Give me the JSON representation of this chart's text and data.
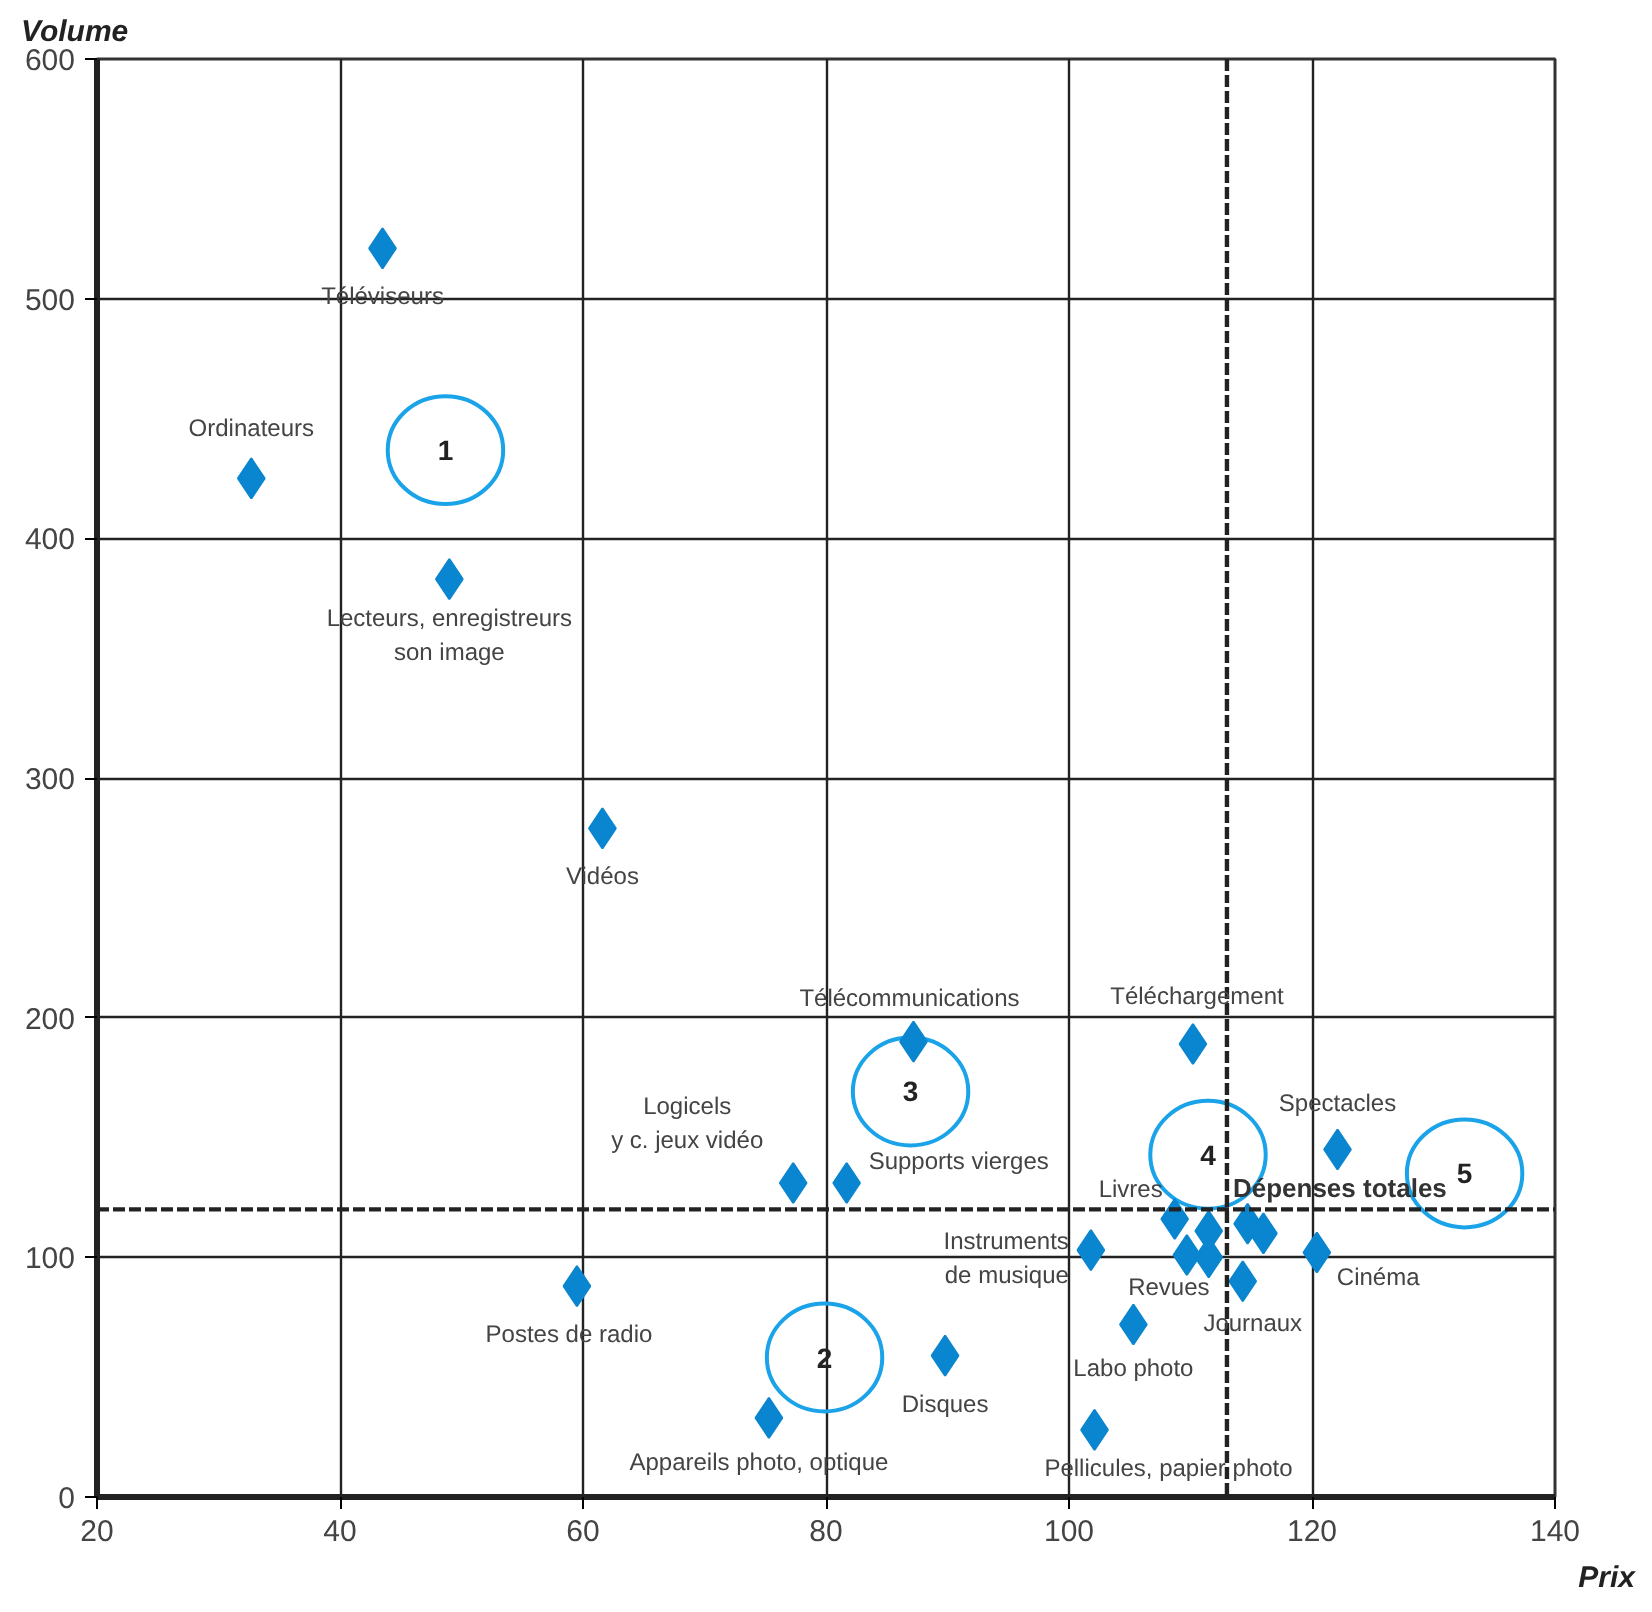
{
  "chart_data": {
    "type": "scatter",
    "xlabel": "Prix",
    "ylabel": "Volume",
    "xlim": [
      20,
      140
    ],
    "xticks": [
      20,
      40,
      60,
      80,
      100,
      120,
      140
    ],
    "ylim": [
      0,
      600
    ],
    "yticks": [
      0,
      100,
      200,
      300,
      400,
      500,
      600
    ],
    "grid": true,
    "marker": "diamond",
    "series": [
      {
        "color": "#0a85cf",
        "x": [
          43.5,
          32.7,
          49.0,
          61.6,
          87.2,
          77.3,
          81.7,
          59.5,
          75.3,
          89.8,
          101.8,
          105.3,
          102.1,
          110.2,
          108.7,
          109.7,
          111.5,
          111.5,
          114.7,
          116.0,
          114.3,
          120.4,
          122.1
        ],
        "values": [
          521,
          425,
          383,
          279,
          190,
          131,
          131,
          88,
          33,
          59,
          103,
          72,
          28,
          189,
          116,
          101,
          111,
          100,
          114,
          110,
          90,
          102,
          145
        ],
        "value_labels": [
          "Téléviseurs",
          "Ordinateurs",
          "Lecteurs, enregistreurs\nson image",
          "Vidéos",
          "Télécommunications",
          "Logicels\ny c. jeux vidéo",
          "Supports vierges",
          "Postes de radio",
          "Appareils photo, optique",
          "Disques",
          "Instruments\nde musique",
          "Labo photo",
          "Pellicules, papier photo",
          "Téléchargement",
          "Livres",
          "Revues",
          null,
          null,
          null,
          null,
          "Journaux",
          "Cinéma",
          "Spectacles"
        ]
      }
    ],
    "ref_lines": [
      {
        "axis": "y",
        "value": 120,
        "label": "Dépenses totales",
        "line_style": "dashed"
      },
      {
        "axis": "x",
        "value": 113,
        "line_style": "dashed"
      }
    ],
    "annotations": [
      "1",
      "2",
      "3",
      "4",
      "5"
    ]
  }
}
